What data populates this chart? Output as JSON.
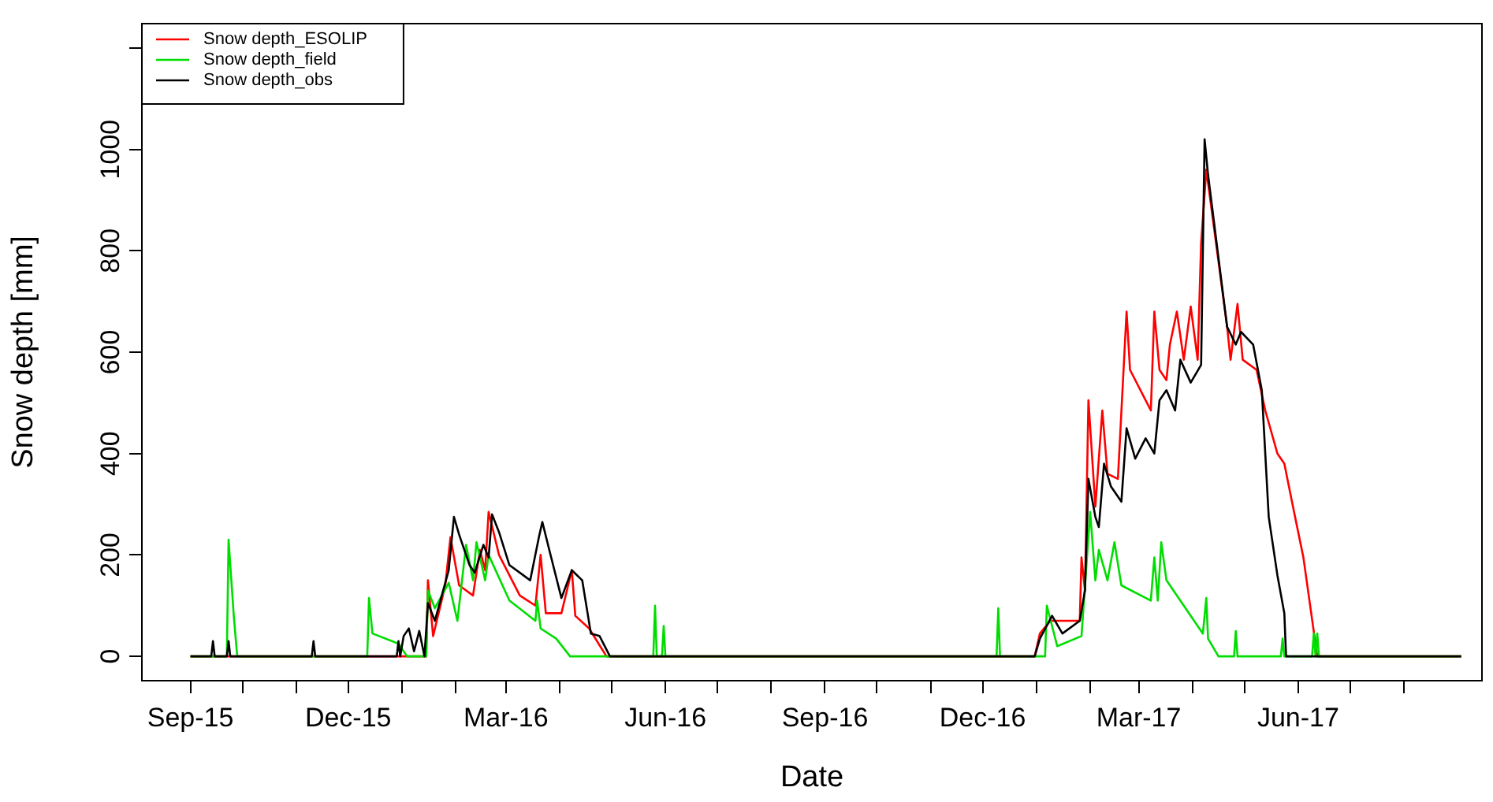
{
  "chart_data": {
    "type": "line",
    "xlabel": "Date",
    "ylabel": "Snow depth [mm]",
    "legend": "top left",
    "grid": false,
    "marker": "none",
    "line_style": "solid",
    "xlim": [
      "2015-08-04",
      "2017-09-15"
    ],
    "xticks": [
      {
        "value": "2015-09-01",
        "label": "Sep-15"
      },
      {
        "value": "2015-10-01",
        "label": null
      },
      {
        "value": "2015-11-01",
        "label": null
      },
      {
        "value": "2015-12-01",
        "label": "Dec-15"
      },
      {
        "value": "2016-01-01",
        "label": null
      },
      {
        "value": "2016-02-01",
        "label": null
      },
      {
        "value": "2016-03-01",
        "label": "Mar-16"
      },
      {
        "value": "2016-04-01",
        "label": null
      },
      {
        "value": "2016-05-01",
        "label": null
      },
      {
        "value": "2016-06-01",
        "label": "Jun-16"
      },
      {
        "value": "2016-07-01",
        "label": null
      },
      {
        "value": "2016-08-01",
        "label": null
      },
      {
        "value": "2016-09-01",
        "label": "Sep-16"
      },
      {
        "value": "2016-10-01",
        "label": null
      },
      {
        "value": "2016-11-01",
        "label": null
      },
      {
        "value": "2016-12-01",
        "label": "Dec-16"
      },
      {
        "value": "2017-01-01",
        "label": null
      },
      {
        "value": "2017-02-01",
        "label": null
      },
      {
        "value": "2017-03-01",
        "label": "Mar-17"
      },
      {
        "value": "2017-04-01",
        "label": null
      },
      {
        "value": "2017-05-01",
        "label": null
      },
      {
        "value": "2017-06-01",
        "label": "Jun-17"
      },
      {
        "value": "2017-07-01",
        "label": null
      },
      {
        "value": "2017-08-01",
        "label": null
      }
    ],
    "ylim": [
      -48,
      1248
    ],
    "yticks": [
      0,
      200,
      400,
      600,
      800,
      1000,
      {
        "value": 1200,
        "label": null
      }
    ],
    "series": [
      {
        "name": "Snow depth_ESOLIP",
        "color": "#ff0000",
        "x": [
          "2015-09-01",
          "2016-01-15",
          "2016-01-16",
          "2016-01-19",
          "2016-01-26",
          "2016-01-29",
          "2016-02-03",
          "2016-02-11",
          "2016-02-15",
          "2016-02-18",
          "2016-02-20",
          "2016-02-26",
          "2016-03-09",
          "2016-03-18",
          "2016-03-21",
          "2016-03-24",
          "2016-04-02",
          "2016-04-08",
          "2016-04-10",
          "2016-04-18",
          "2016-04-28",
          "2016-12-31",
          "2017-01-03",
          "2017-01-09",
          "2017-01-26",
          "2017-01-27",
          "2017-01-29",
          "2017-01-31",
          "2017-02-04",
          "2017-02-08",
          "2017-02-11",
          "2017-02-17",
          "2017-02-22",
          "2017-02-24",
          "2017-03-08",
          "2017-03-10",
          "2017-03-13",
          "2017-03-17",
          "2017-03-19",
          "2017-03-23",
          "2017-03-27",
          "2017-03-31",
          "2017-04-04",
          "2017-04-06",
          "2017-04-09",
          "2017-04-21",
          "2017-04-23",
          "2017-04-27",
          "2017-04-30",
          "2017-05-08",
          "2017-05-13",
          "2017-05-20",
          "2017-05-24",
          "2017-05-29",
          "2017-06-04",
          "2017-06-12",
          "2017-09-03"
        ],
        "values": [
          0,
          0,
          150,
          40,
          140,
          235,
          140,
          120,
          210,
          170,
          285,
          200,
          120,
          100,
          200,
          85,
          85,
          170,
          80,
          55,
          0,
          0,
          45,
          70,
          70,
          195,
          130,
          505,
          295,
          485,
          360,
          350,
          680,
          565,
          485,
          680,
          565,
          545,
          615,
          680,
          585,
          690,
          585,
          815,
          960,
          650,
          585,
          695,
          585,
          565,
          485,
          400,
          380,
          295,
          195,
          0,
          0
        ]
      },
      {
        "name": "Snow depth_field",
        "color": "#00dd00",
        "x": [
          "2015-09-01",
          "2015-09-22",
          "2015-09-23",
          "2015-09-26",
          "2015-09-28",
          "2015-12-12",
          "2015-12-13",
          "2015-12-15",
          "2015-12-30",
          "2016-01-04",
          "2016-01-15",
          "2016-01-16",
          "2016-01-20",
          "2016-01-28",
          "2016-02-02",
          "2016-02-07",
          "2016-02-11",
          "2016-02-13",
          "2016-02-18",
          "2016-02-20",
          "2016-03-03",
          "2016-03-18",
          "2016-03-19",
          "2016-03-21",
          "2016-03-30",
          "2016-04-07",
          "2016-05-25",
          "2016-05-26",
          "2016-05-27",
          "2016-05-30",
          "2016-05-31",
          "2016-06-01",
          "2016-12-09",
          "2016-12-10",
          "2016-12-11",
          "2017-01-06",
          "2017-01-07",
          "2017-01-13",
          "2017-01-27",
          "2017-02-01",
          "2017-02-04",
          "2017-02-06",
          "2017-02-11",
          "2017-02-15",
          "2017-02-19",
          "2017-03-08",
          "2017-03-10",
          "2017-03-12",
          "2017-03-14",
          "2017-03-17",
          "2017-03-27",
          "2017-04-07",
          "2017-04-09",
          "2017-04-10",
          "2017-04-16",
          "2017-04-25",
          "2017-04-26",
          "2017-04-27",
          "2017-05-22",
          "2017-05-23",
          "2017-05-24",
          "2017-06-09",
          "2017-06-10",
          "2017-06-11",
          "2017-06-12",
          "2017-06-13",
          "2017-09-03"
        ],
        "values": [
          0,
          0,
          230,
          80,
          0,
          0,
          115,
          45,
          25,
          0,
          0,
          130,
          95,
          145,
          70,
          220,
          150,
          225,
          150,
          200,
          110,
          70,
          110,
          55,
          35,
          0,
          0,
          100,
          0,
          0,
          60,
          0,
          0,
          95,
          0,
          0,
          100,
          20,
          40,
          285,
          150,
          210,
          150,
          225,
          140,
          110,
          195,
          110,
          225,
          150,
          100,
          45,
          115,
          35,
          0,
          0,
          50,
          0,
          0,
          35,
          0,
          0,
          45,
          0,
          45,
          0,
          0
        ]
      },
      {
        "name": "Snow depth_obs",
        "color": "#000000",
        "x": [
          "2015-09-01",
          "2015-09-13",
          "2015-09-14",
          "2015-09-15",
          "2015-09-22",
          "2015-09-23",
          "2015-09-24",
          "2015-11-10",
          "2015-11-11",
          "2015-11-12",
          "2015-12-29",
          "2015-12-30",
          "2015-12-31",
          "2016-01-02",
          "2016-01-05",
          "2016-01-08",
          "2016-01-11",
          "2016-01-14",
          "2016-01-16",
          "2016-01-20",
          "2016-01-28",
          "2016-01-31",
          "2016-02-03",
          "2016-02-09",
          "2016-02-12",
          "2016-02-17",
          "2016-02-20",
          "2016-02-22",
          "2016-02-26",
          "2016-03-03",
          "2016-03-15",
          "2016-03-20",
          "2016-03-22",
          "2016-03-26",
          "2016-04-02",
          "2016-04-08",
          "2016-04-14",
          "2016-04-19",
          "2016-04-24",
          "2016-04-30",
          "2016-12-31",
          "2017-01-03",
          "2017-01-10",
          "2017-01-16",
          "2017-01-26",
          "2017-01-29",
          "2017-01-31",
          "2017-02-04",
          "2017-02-06",
          "2017-02-09",
          "2017-02-13",
          "2017-02-19",
          "2017-02-22",
          "2017-02-27",
          "2017-03-05",
          "2017-03-10",
          "2017-03-13",
          "2017-03-17",
          "2017-03-22",
          "2017-03-25",
          "2017-03-31",
          "2017-04-06",
          "2017-04-08",
          "2017-04-10",
          "2017-04-21",
          "2017-04-26",
          "2017-04-29",
          "2017-05-06",
          "2017-05-11",
          "2017-05-15",
          "2017-05-20",
          "2017-05-24",
          "2017-05-25",
          "2017-09-03"
        ],
        "values": [
          0,
          0,
          30,
          0,
          0,
          30,
          0,
          0,
          30,
          0,
          0,
          30,
          0,
          40,
          55,
          10,
          50,
          0,
          105,
          70,
          170,
          275,
          240,
          180,
          165,
          220,
          195,
          280,
          245,
          180,
          150,
          235,
          265,
          210,
          115,
          170,
          150,
          45,
          40,
          0,
          0,
          35,
          80,
          45,
          70,
          130,
          350,
          275,
          255,
          380,
          335,
          305,
          450,
          390,
          430,
          400,
          505,
          525,
          485,
          585,
          540,
          575,
          1020,
          950,
          650,
          615,
          640,
          615,
          525,
          275,
          160,
          85,
          0,
          0
        ]
      }
    ]
  }
}
